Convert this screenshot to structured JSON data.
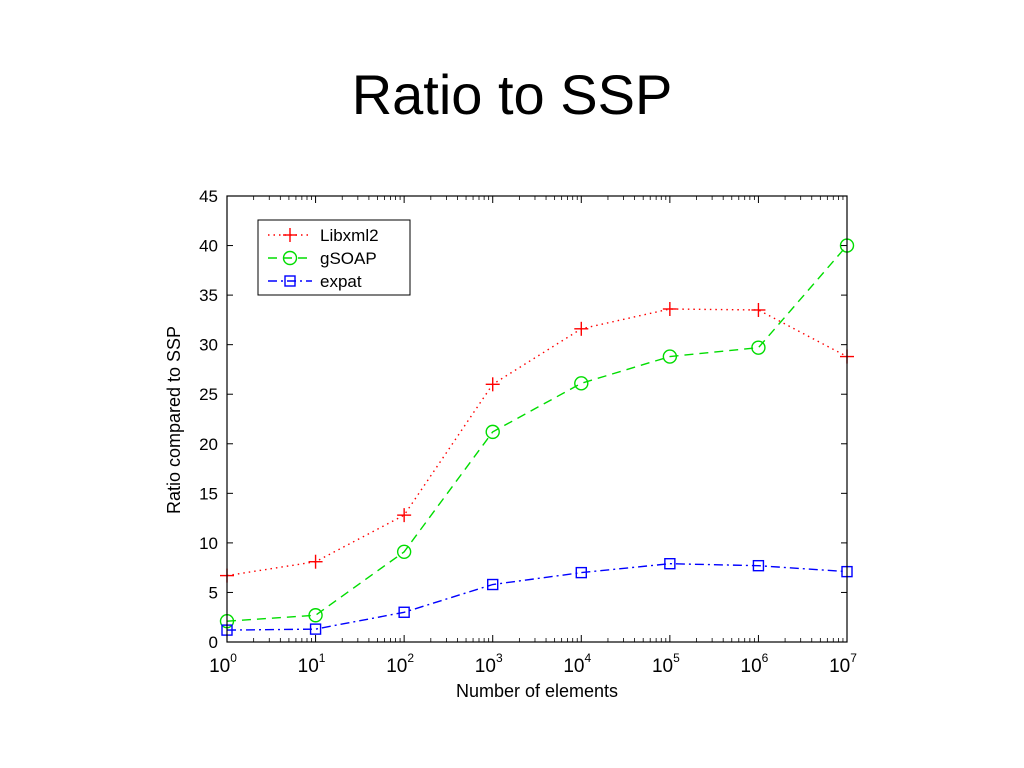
{
  "slide": {
    "title": "Ratio to SSP"
  },
  "chart_data": {
    "type": "line",
    "title": "",
    "xlabel": "Number of elements",
    "ylabel": "Ratio compared to SSP",
    "xscale": "log",
    "xlim": [
      1,
      10000000
    ],
    "ylim": [
      0,
      45
    ],
    "x": [
      1,
      10,
      100,
      1000,
      10000,
      100000,
      1000000,
      10000000
    ],
    "x_tick_labels": [
      {
        "base": "10",
        "exp": "0"
      },
      {
        "base": "10",
        "exp": "1"
      },
      {
        "base": "10",
        "exp": "2"
      },
      {
        "base": "10",
        "exp": "3"
      },
      {
        "base": "10",
        "exp": "4"
      },
      {
        "base": "10",
        "exp": "5"
      },
      {
        "base": "10",
        "exp": "6"
      },
      {
        "base": "10",
        "exp": "7"
      }
    ],
    "y_ticks": [
      "0",
      "5",
      "10",
      "15",
      "20",
      "25",
      "30",
      "35",
      "40",
      "45"
    ],
    "grid": false,
    "legend_position": "top-left",
    "series": [
      {
        "name": "Libxml2",
        "color": "#ff0000",
        "marker": "plus",
        "line": "dotted",
        "values": [
          6.7,
          8.1,
          12.8,
          26.0,
          31.6,
          33.6,
          33.5,
          28.8
        ]
      },
      {
        "name": "gSOAP",
        "color": "#00dd00",
        "marker": "circle",
        "line": "dashed",
        "values": [
          2.1,
          2.7,
          9.1,
          21.2,
          26.1,
          28.8,
          29.7,
          40.0
        ]
      },
      {
        "name": "expat",
        "color": "#0000ff",
        "marker": "square",
        "line": "dashdot",
        "values": [
          1.2,
          1.3,
          3.0,
          5.8,
          7.0,
          7.9,
          7.7,
          7.1
        ]
      }
    ]
  }
}
